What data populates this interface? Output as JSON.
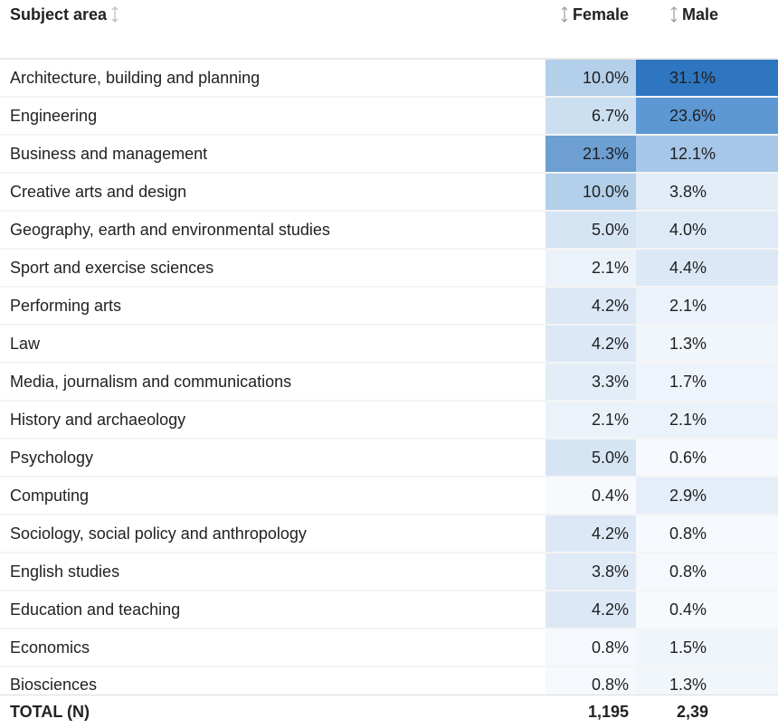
{
  "table": {
    "headers": {
      "subject": "Subject area",
      "female": "Female",
      "male": "Male"
    },
    "sort_icon": "sort-icon",
    "rows": [
      {
        "subject": "Architecture, building and planning",
        "female": "10.0%",
        "male": "31.1%",
        "female_bg": "#b3cfe9",
        "male_bg": "#2f76c0"
      },
      {
        "subject": "Engineering",
        "female": "6.7%",
        "male": "23.6%",
        "female_bg": "#cbdff1",
        "male_bg": "#5d98d4"
      },
      {
        "subject": "Business and management",
        "female": "21.3%",
        "male": "12.1%",
        "female_bg": "#6d9fd3",
        "male_bg": "#a7c7e8"
      },
      {
        "subject": "Creative arts and design",
        "female": "10.0%",
        "male": "3.8%",
        "female_bg": "#b3cfe9",
        "male_bg": "#e1ecf7"
      },
      {
        "subject": "Geography, earth and environmental studies",
        "female": "5.0%",
        "male": "4.0%",
        "female_bg": "#d6e5f4",
        "male_bg": "#deeaf6"
      },
      {
        "subject": "Sport and exercise sciences",
        "female": "2.1%",
        "male": "4.4%",
        "female_bg": "#ebf2fa",
        "male_bg": "#dce8f5"
      },
      {
        "subject": "Performing arts",
        "female": "4.2%",
        "male": "2.1%",
        "female_bg": "#dce8f5",
        "male_bg": "#ebf2fa"
      },
      {
        "subject": "Law",
        "female": "4.2%",
        "male": "1.3%",
        "female_bg": "#dce8f5",
        "male_bg": "#f1f6fb"
      },
      {
        "subject": "Media, journalism and communications",
        "female": "3.3%",
        "male": "1.7%",
        "female_bg": "#e2edf7",
        "male_bg": "#eef4fb"
      },
      {
        "subject": "History and archaeology",
        "female": "2.1%",
        "male": "2.1%",
        "female_bg": "#ebf2fa",
        "male_bg": "#ebf2fa"
      },
      {
        "subject": "Psychology",
        "female": "5.0%",
        "male": "0.6%",
        "female_bg": "#d6e5f4",
        "male_bg": "#f6f9fd"
      },
      {
        "subject": "Computing",
        "female": "0.4%",
        "male": "2.9%",
        "female_bg": "#f7fafd",
        "male_bg": "#e5eef8"
      },
      {
        "subject": "Sociology, social policy and anthropology",
        "female": "4.2%",
        "male": "0.8%",
        "female_bg": "#dce8f5",
        "male_bg": "#f5f8fc"
      },
      {
        "subject": "English studies",
        "female": "3.8%",
        "male": "0.8%",
        "female_bg": "#dfeaf6",
        "male_bg": "#f5f8fc"
      },
      {
        "subject": "Education and teaching",
        "female": "4.2%",
        "male": "0.4%",
        "female_bg": "#dce8f5",
        "male_bg": "#f7fafd"
      },
      {
        "subject": "Economics",
        "female": "0.8%",
        "male": "1.5%",
        "female_bg": "#f5f8fc",
        "male_bg": "#eff5fb"
      },
      {
        "subject": "Biosciences",
        "female": "0.8%",
        "male": "1.3%",
        "female_bg": "#f5f8fc",
        "male_bg": "#f1f6fb"
      }
    ],
    "total": {
      "label": "TOTAL (N)",
      "female": "1,195",
      "male": "2,39"
    }
  }
}
